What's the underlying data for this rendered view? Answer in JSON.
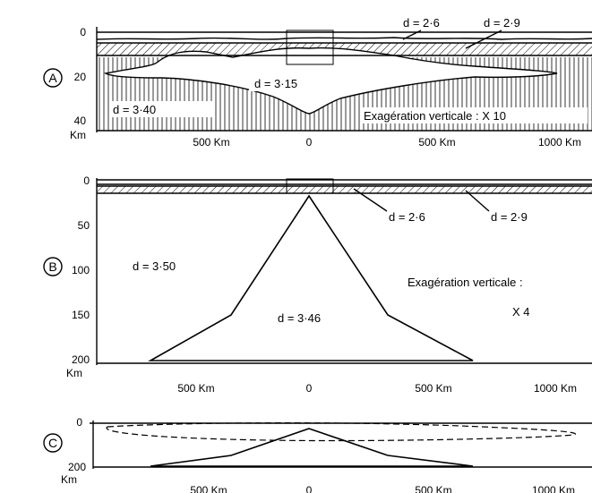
{
  "panels": {
    "a": {
      "marker": "A",
      "y_ticks": [
        "0",
        "20",
        "40"
      ],
      "y_unit": "Km",
      "x_ticks": [
        "500 Km",
        "0",
        "500 Km",
        "1000 Km"
      ],
      "labels": {
        "d_upper_crust": "d = 2·6",
        "d_lower_crust": "d = 2·9",
        "d_anomalous": "d = 3·15",
        "d_mantle": "d = 3·40"
      },
      "exaggeration": "Exagération verticale : X 10"
    },
    "b": {
      "marker": "B",
      "y_ticks": [
        "0",
        "50",
        "100",
        "150",
        "200"
      ],
      "y_unit": "Km",
      "x_ticks": [
        "500 Km",
        "0",
        "500 Km",
        "1000 Km"
      ],
      "labels": {
        "d_upper_crust": "d = 2·6",
        "d_lower_crust": "d = 2·9",
        "d_mantle": "d = 3·50",
        "d_anomalous": "d = 3·46"
      },
      "exaggeration_line1": "Exagération verticale :",
      "exaggeration_line2": "X 4"
    },
    "c": {
      "marker": "C",
      "y_ticks": [
        "0",
        "200"
      ],
      "y_unit": "Km",
      "x_ticks": [
        "500 Km",
        "0",
        "500 Km",
        "1000 Km"
      ]
    }
  }
}
